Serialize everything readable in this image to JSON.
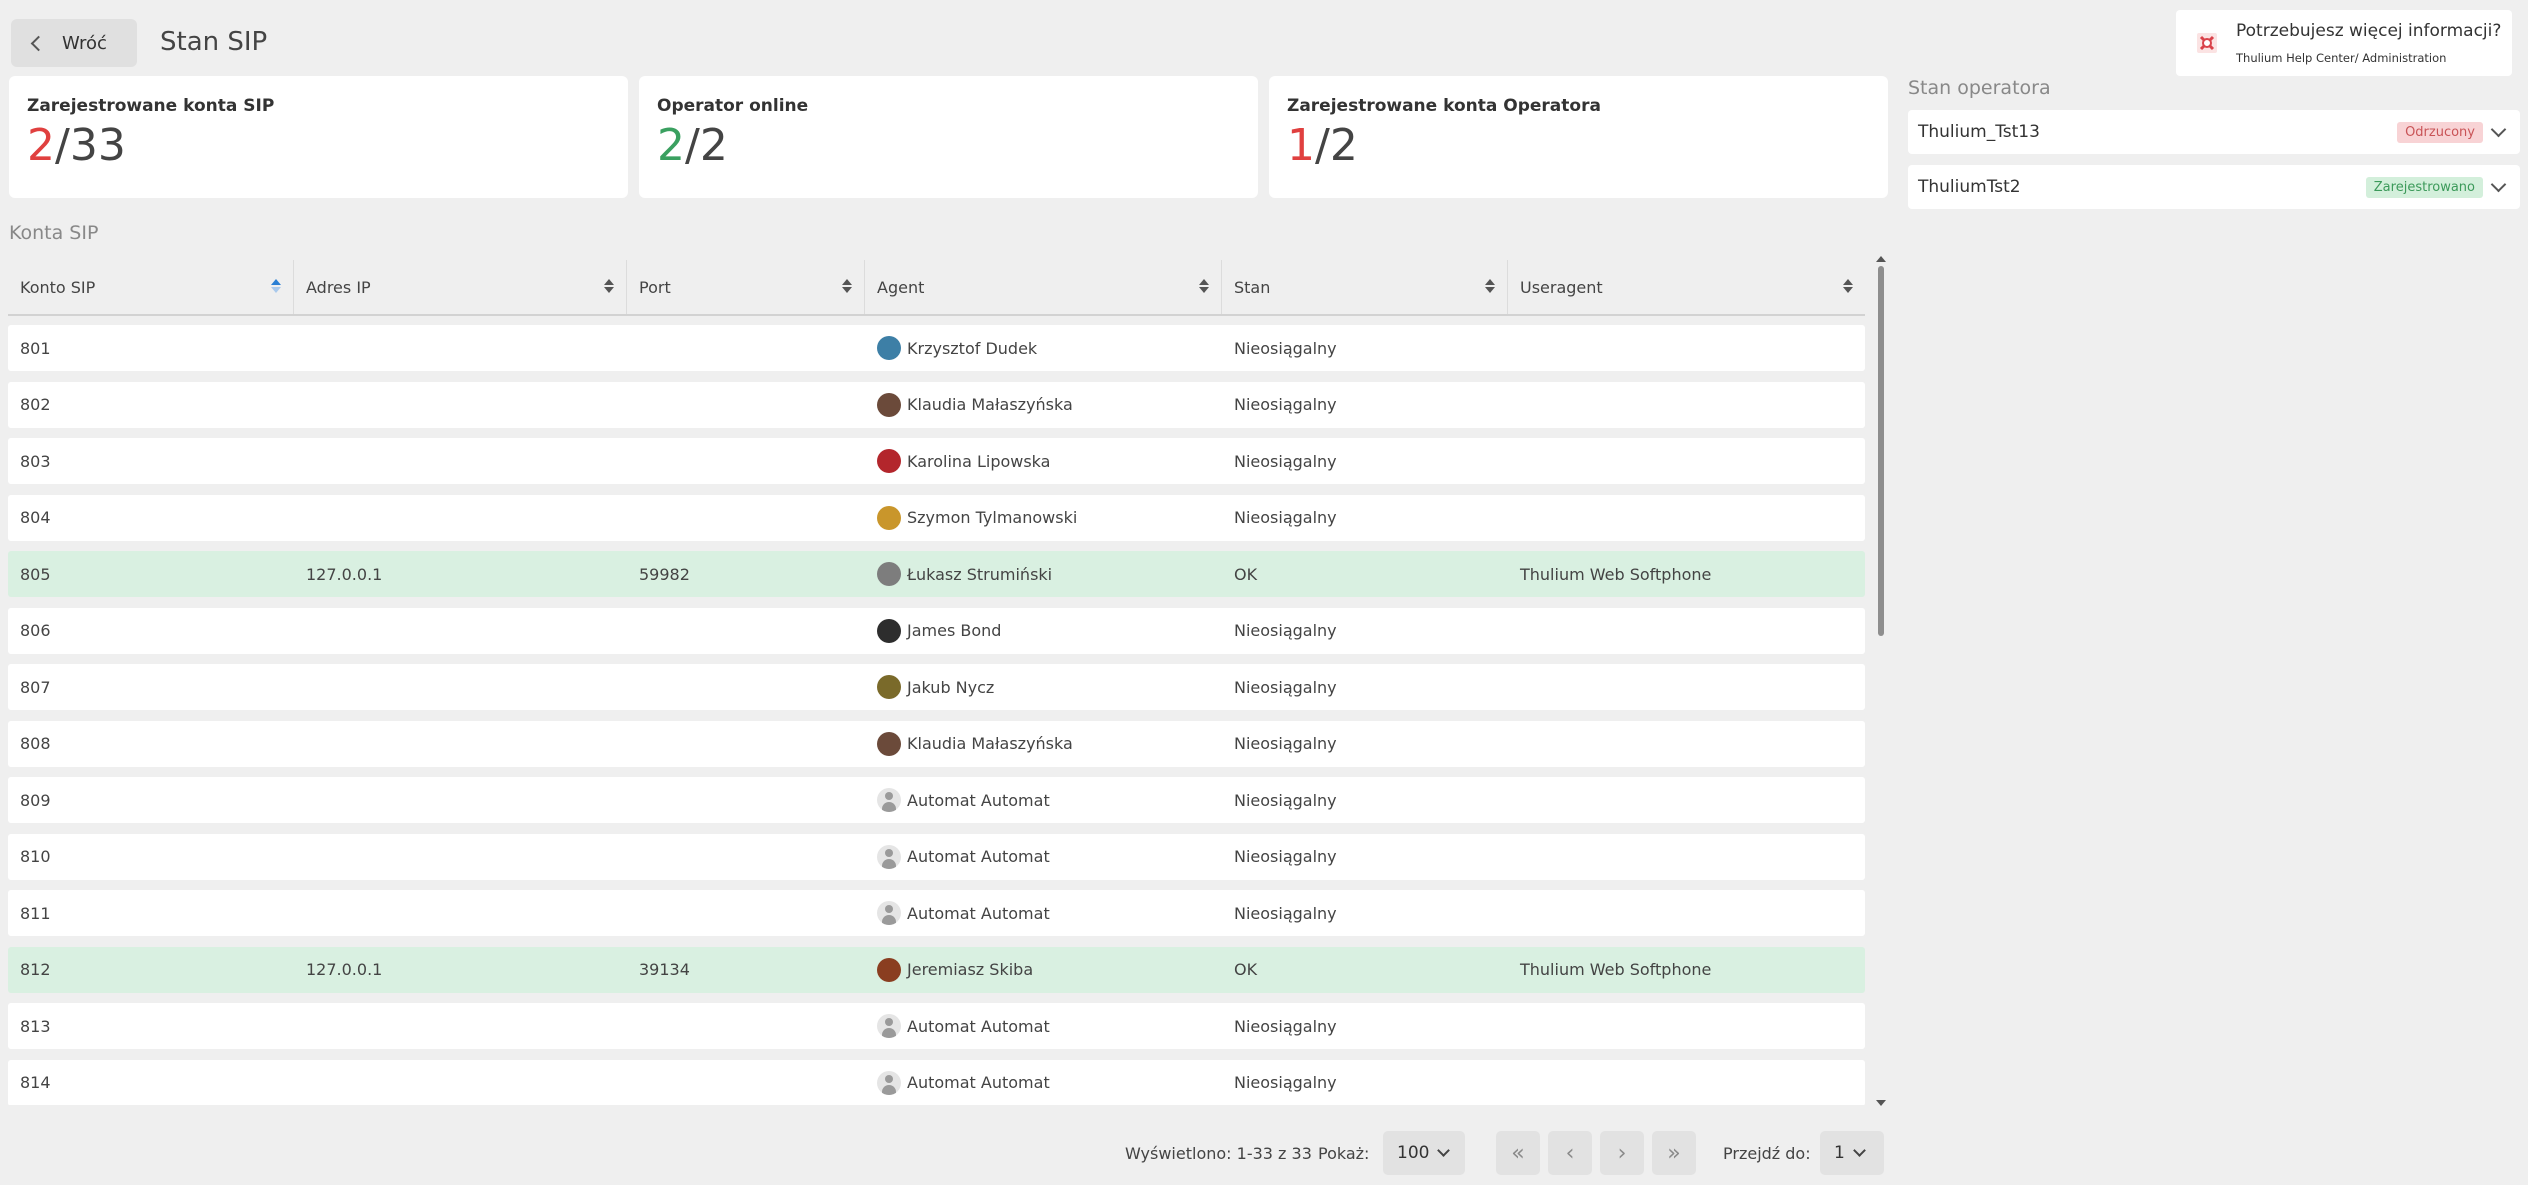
{
  "header": {
    "back_label": "Wróć",
    "title": "Stan SIP"
  },
  "help": {
    "title": "Potrzebujesz więcej informacji?",
    "subtitle": "Thulium Help Center/ Administration"
  },
  "stats": [
    {
      "title": "Zarejestrowane konta SIP",
      "value": "2",
      "total": "/33",
      "value_color": "red"
    },
    {
      "title": "Operator online",
      "value": "2",
      "total": "/2",
      "value_color": "green"
    },
    {
      "title": "Zarejestrowane konta Operatora",
      "value": "1",
      "total": "/2",
      "value_color": "red"
    }
  ],
  "section_title": "Konta SIP",
  "operator_panel": {
    "title": "Stan operatora",
    "operators": [
      {
        "name": "Thulium_Tst13",
        "status": "Odrzucony",
        "status_color": "#c95457"
      },
      {
        "name": "ThuliumTst2",
        "status": "Zarejestrowano",
        "status_color": "#3c9a5a"
      }
    ]
  },
  "table": {
    "columns": [
      "Konto SIP",
      "Adres IP",
      "Port",
      "Agent",
      "Stan",
      "Useragent"
    ],
    "rows": [
      {
        "account": "801",
        "ip": "",
        "port": "",
        "agent": "Krzysztof Dudek",
        "avatar": "avatar-blue",
        "state": "Nieosiągalny",
        "useragent": "",
        "ok": false
      },
      {
        "account": "802",
        "ip": "",
        "port": "",
        "agent": "Klaudia Małaszyńska",
        "avatar": "avatar-brown",
        "state": "Nieosiągalny",
        "useragent": "",
        "ok": false
      },
      {
        "account": "803",
        "ip": "",
        "port": "",
        "agent": "Karolina Lipowska",
        "avatar": "avatar-red",
        "state": "Nieosiągalny",
        "useragent": "",
        "ok": false
      },
      {
        "account": "804",
        "ip": "",
        "port": "",
        "agent": "Szymon Tylmanowski",
        "avatar": "avatar-yellow",
        "state": "Nieosiągalny",
        "useragent": "",
        "ok": false
      },
      {
        "account": "805",
        "ip": "127.0.0.1",
        "port": "59982",
        "agent": "Łukasz Strumiński",
        "avatar": "avatar-gray",
        "state": "OK",
        "useragent": "Thulium Web Softphone",
        "ok": true
      },
      {
        "account": "806",
        "ip": "",
        "port": "",
        "agent": "James Bond",
        "avatar": "avatar-suit",
        "state": "Nieosiągalny",
        "useragent": "",
        "ok": false
      },
      {
        "account": "807",
        "ip": "",
        "port": "",
        "agent": "Jakub Nycz",
        "avatar": "avatar-olive",
        "state": "Nieosiągalny",
        "useragent": "",
        "ok": false
      },
      {
        "account": "808",
        "ip": "",
        "port": "",
        "agent": "Klaudia Małaszyńska",
        "avatar": "avatar-brown",
        "state": "Nieosiągalny",
        "useragent": "",
        "ok": false
      },
      {
        "account": "809",
        "ip": "",
        "port": "",
        "agent": "Automat Automat",
        "avatar": "placeholder",
        "state": "Nieosiągalny",
        "useragent": "",
        "ok": false
      },
      {
        "account": "810",
        "ip": "",
        "port": "",
        "agent": "Automat Automat",
        "avatar": "placeholder",
        "state": "Nieosiągalny",
        "useragent": "",
        "ok": false
      },
      {
        "account": "811",
        "ip": "",
        "port": "",
        "agent": "Automat Automat",
        "avatar": "placeholder",
        "state": "Nieosiągalny",
        "useragent": "",
        "ok": false
      },
      {
        "account": "812",
        "ip": "127.0.0.1",
        "port": "39134",
        "agent": "Jeremiasz Skiba",
        "avatar": "avatar-rust",
        "state": "OK",
        "useragent": "Thulium Web Softphone",
        "ok": true
      },
      {
        "account": "813",
        "ip": "",
        "port": "",
        "agent": "Automat Automat",
        "avatar": "placeholder",
        "state": "Nieosiągalny",
        "useragent": "",
        "ok": false
      },
      {
        "account": "814",
        "ip": "",
        "port": "",
        "agent": "Automat Automat",
        "avatar": "placeholder",
        "state": "Nieosiągalny",
        "useragent": "",
        "ok": false
      }
    ]
  },
  "pagination": {
    "shown_text": "Wyświetlono: 1-33 z 33",
    "show_label": "Pokaż:",
    "page_size": "100",
    "goto_label": "Przejdź do:",
    "current_page": "1",
    "first_icon": "«",
    "prev_icon": "‹",
    "next_icon": "›",
    "last_icon": "»"
  },
  "colors": {
    "accent_red": "#e0403f",
    "accent_green": "#3aa060",
    "ok_row": "#d9f0e1"
  }
}
